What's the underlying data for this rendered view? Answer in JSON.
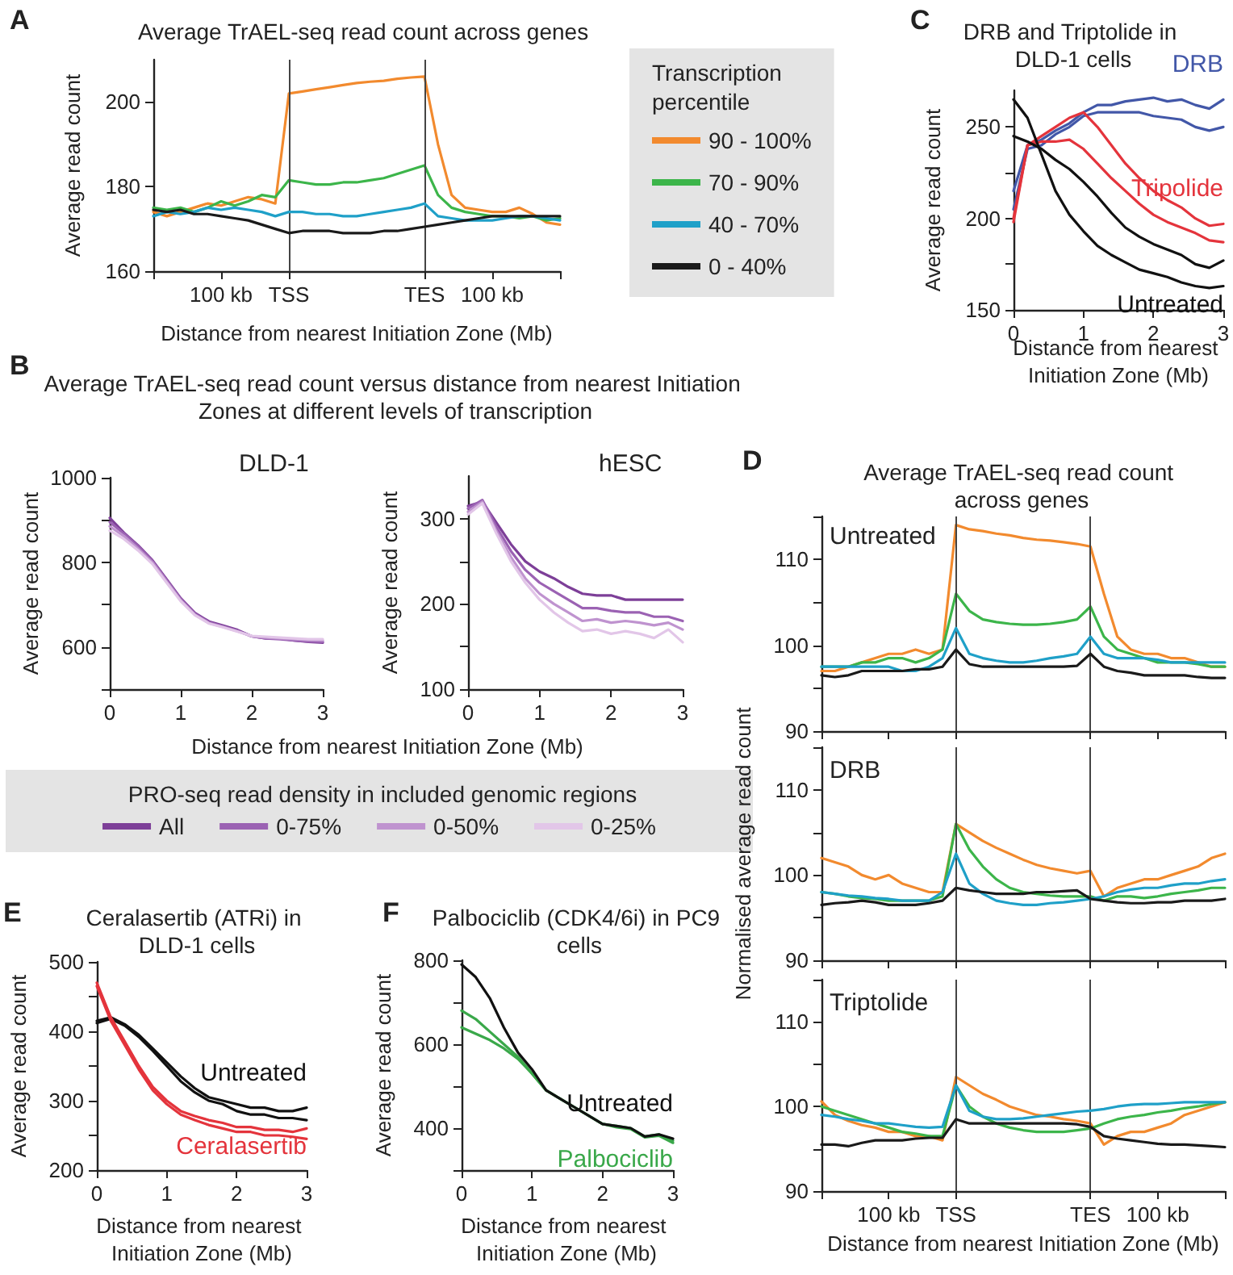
{
  "chart_data": [
    {
      "type": "line",
      "title": "Average TrAEL-seq read count across genes",
      "ylabel": "Average read count",
      "xlabel": "Distance from nearest Initiation Zone (Mb)",
      "legend_title": "Transcription percentile",
      "legend": "right",
      "marker": "none",
      "line_style": "solid",
      "annotations": [
        "A"
      ],
      "categories": [
        null,
        null,
        null,
        null,
        null,
        "100 kb",
        null,
        null,
        null,
        null,
        "TSS",
        null,
        null,
        null,
        null,
        null,
        null,
        null,
        null,
        null,
        "TES",
        null,
        null,
        null,
        null,
        "100 kb",
        null,
        null,
        null,
        null,
        null
      ],
      "ylim": [
        160,
        210
      ],
      "yticks": [
        160,
        180,
        200
      ],
      "ref_lines": [
        {
          "axis": "x",
          "value": "TSS"
        },
        {
          "axis": "x",
          "value": "TES"
        }
      ],
      "series": [
        {
          "name": "90 - 100%",
          "color": "#f28a2e",
          "values": [
            174,
            173,
            174,
            175,
            176,
            175.5,
            176.5,
            177.5,
            177,
            176,
            202,
            202.5,
            203,
            203.5,
            204,
            204.5,
            204.8,
            205,
            205.5,
            205.8,
            206,
            190,
            178,
            175,
            174.5,
            174,
            174,
            175,
            173.5,
            171.5,
            171
          ]
        },
        {
          "name": "70 - 90%",
          "color": "#3cb54a",
          "values": [
            175,
            174.5,
            175,
            174,
            175,
            176.5,
            175.5,
            176.5,
            178,
            177.5,
            181.5,
            181,
            180.5,
            180.5,
            181,
            181,
            181.5,
            182,
            183,
            184,
            185,
            178,
            175,
            174,
            173.5,
            173,
            173,
            172.5,
            173,
            172,
            172.5
          ]
        },
        {
          "name": "40 - 70%",
          "color": "#1fa0c8",
          "values": [
            173,
            174,
            173.5,
            174,
            175,
            174.5,
            175,
            174.5,
            174,
            173,
            174,
            174,
            173.5,
            173.5,
            173,
            173,
            173.5,
            174,
            174.5,
            175,
            176,
            173,
            172.5,
            172,
            172,
            172,
            172.5,
            173,
            173,
            172.5,
            172
          ]
        },
        {
          "name": "0 - 40%",
          "color": "#1a1a1a",
          "values": [
            174.5,
            174,
            174.5,
            173.5,
            173.5,
            173,
            172.5,
            172,
            171,
            170,
            169,
            169.5,
            169.5,
            169.5,
            169,
            169,
            169,
            169.5,
            169.5,
            170,
            170.5,
            171,
            171.5,
            172,
            172.5,
            173,
            173,
            173,
            173,
            173,
            173
          ]
        }
      ]
    },
    {
      "type": "line",
      "title": "Average TrAEL-seq read count versus distance from nearest Initiation Zones at different levels of transcription",
      "ylabel": "Average read count",
      "xlabel": "Distance from nearest Initiation Zone (Mb)",
      "legend_title": "PRO-seq read density in included genomic regions",
      "legend": "bottom",
      "marker": "none",
      "line_style": "solid",
      "annotations": [
        "B",
        "DLD-1"
      ],
      "x": [
        0,
        0.2,
        0.4,
        0.6,
        0.8,
        1,
        1.2,
        1.4,
        1.6,
        1.8,
        2,
        2.2,
        2.4,
        2.6,
        2.8,
        3
      ],
      "xlim": [
        0,
        3
      ],
      "xticks": [
        0,
        1,
        2,
        3
      ],
      "ylim": [
        500,
        1000
      ],
      "yticks": [
        {
          "value": 500,
          "label": null
        },
        600,
        {
          "value": 700,
          "label": null
        },
        800,
        {
          "value": 900,
          "label": null
        },
        1000
      ],
      "series": [
        {
          "name": "All",
          "color": "#7d3f98",
          "values": [
            905,
            870,
            840,
            805,
            760,
            715,
            680,
            660,
            650,
            640,
            625,
            620,
            620,
            615,
            612,
            610
          ]
        },
        {
          "name": "0-75%",
          "color": "#9b62b3",
          "values": [
            895,
            868,
            838,
            803,
            758,
            713,
            678,
            658,
            648,
            638,
            625,
            620,
            618,
            615,
            613,
            612
          ]
        },
        {
          "name": "0-50%",
          "color": "#bf93cf",
          "values": [
            885,
            862,
            832,
            800,
            755,
            710,
            676,
            656,
            647,
            637,
            625,
            622,
            620,
            618,
            616,
            615
          ]
        },
        {
          "name": "0-25%",
          "color": "#e2c6e8",
          "values": [
            875,
            855,
            828,
            796,
            752,
            708,
            675,
            655,
            646,
            636,
            626,
            624,
            622,
            620,
            618,
            618
          ]
        }
      ]
    },
    {
      "type": "line",
      "ylabel": "Average read count",
      "marker": "none",
      "line_style": "solid",
      "annotations": [
        "hESC"
      ],
      "x": [
        0,
        0.2,
        0.4,
        0.6,
        0.8,
        1,
        1.2,
        1.4,
        1.6,
        1.8,
        2,
        2.2,
        2.4,
        2.6,
        2.8,
        3
      ],
      "xlim": [
        0,
        3
      ],
      "xticks": [
        0,
        1,
        2,
        3
      ],
      "ylim": [
        100,
        350
      ],
      "yticks": [
        100,
        {
          "value": 150,
          "label": null
        },
        200,
        {
          "value": 250,
          "label": null
        },
        300
      ],
      "series": [
        {
          "color": "#7d3f98",
          "values": [
            315,
            320,
            295,
            270,
            250,
            238,
            230,
            220,
            212,
            210,
            210,
            205,
            205,
            205,
            205,
            205
          ]
        },
        {
          "color": "#9b62b3",
          "values": [
            312,
            322,
            290,
            262,
            240,
            225,
            215,
            205,
            195,
            195,
            192,
            190,
            190,
            185,
            185,
            180
          ]
        },
        {
          "color": "#bf93cf",
          "values": [
            308,
            320,
            285,
            255,
            230,
            212,
            200,
            190,
            180,
            182,
            178,
            180,
            178,
            175,
            178,
            170
          ]
        },
        {
          "color": "#e2c6e8",
          "values": [
            305,
            318,
            282,
            250,
            225,
            205,
            190,
            178,
            168,
            170,
            165,
            168,
            165,
            160,
            170,
            155
          ]
        }
      ]
    },
    {
      "type": "line",
      "title": "DRB and Triptolide in DLD-1 cells",
      "ylabel": "Average read count",
      "xlabel": "Distance from nearest Initiation Zone (Mb)",
      "marker": "none",
      "line_style": "solid",
      "annotations": [
        "C"
      ],
      "x": [
        0,
        0.2,
        0.4,
        0.6,
        0.8,
        1,
        1.2,
        1.4,
        1.6,
        1.8,
        2,
        2.2,
        2.4,
        2.6,
        2.8,
        3
      ],
      "xlim": [
        0,
        3
      ],
      "xticks": [
        0,
        1,
        2,
        3
      ],
      "ylim": [
        150,
        270
      ],
      "yticks": [
        150,
        {
          "value": 175,
          "label": null
        },
        200,
        {
          "value": 225,
          "label": null
        },
        250
      ],
      "series": [
        {
          "name": "DRB",
          "color": "#4257a8",
          "values": [
            215,
            240,
            243,
            248,
            252,
            258,
            262,
            262,
            264,
            265,
            266,
            264,
            265,
            262,
            260,
            265
          ]
        },
        {
          "color": "#4257a8",
          "values": [
            205,
            238,
            240,
            246,
            250,
            256,
            258,
            258,
            258,
            258,
            256,
            255,
            254,
            250,
            248,
            250
          ]
        },
        {
          "name": "Tripolide",
          "color": "#e4343c",
          "values": [
            200,
            240,
            245,
            250,
            255,
            258,
            250,
            240,
            230,
            222,
            215,
            210,
            206,
            200,
            196,
            197
          ]
        },
        {
          "color": "#e4343c",
          "values": [
            198,
            240,
            242,
            242,
            243,
            238,
            230,
            222,
            215,
            208,
            202,
            198,
            195,
            192,
            188,
            187
          ]
        },
        {
          "name": "Untreated",
          "color": "#111111",
          "values": [
            265,
            255,
            235,
            215,
            202,
            193,
            185,
            180,
            176,
            172,
            170,
            168,
            165,
            163,
            162,
            163
          ]
        },
        {
          "color": "#111111",
          "values": [
            245,
            242,
            238,
            232,
            227,
            220,
            212,
            203,
            195,
            190,
            186,
            183,
            180,
            175,
            173,
            177
          ]
        }
      ]
    },
    {
      "type": "line",
      "title": "Average TrAEL-seq read count across genes",
      "tick_labels": "y",
      "marker": "none",
      "line_style": "solid",
      "annotations": [
        "D",
        "Untreated"
      ],
      "categories": [
        null,
        null,
        null,
        null,
        null,
        "100 kb",
        null,
        null,
        null,
        null,
        "TSS",
        null,
        null,
        null,
        null,
        null,
        null,
        null,
        null,
        null,
        "TES",
        null,
        null,
        null,
        null,
        "100 kb",
        null,
        null,
        null,
        null,
        null
      ],
      "ylim": [
        90,
        115
      ],
      "yticks": [
        90,
        {
          "value": 95,
          "label": null
        },
        100,
        {
          "value": 105,
          "label": null
        },
        110,
        {
          "value": 115,
          "label": null
        }
      ],
      "ref_lines": [
        {
          "axis": "x",
          "value": "TSS"
        },
        {
          "axis": "x",
          "value": "TES"
        }
      ],
      "series": [
        {
          "color": "#f28a2e",
          "values": [
            97,
            97,
            97.5,
            98,
            98.5,
            99,
            99,
            99.5,
            99,
            99.5,
            114,
            113.5,
            113.3,
            113,
            112.8,
            112.5,
            112.3,
            112.2,
            112,
            111.8,
            111.5,
            106,
            101,
            99.5,
            99,
            99,
            98.5,
            98.5,
            98,
            97.5,
            97.5
          ]
        },
        {
          "color": "#3cb54a",
          "values": [
            97.5,
            97.5,
            97.5,
            98,
            98,
            98.5,
            98.5,
            98,
            98.5,
            99.5,
            106,
            104,
            103,
            102.7,
            102.5,
            102.4,
            102.4,
            102.5,
            102.7,
            103,
            104.5,
            101,
            99.5,
            99,
            98.5,
            98,
            98,
            98,
            97.8,
            97.5,
            97.5
          ]
        },
        {
          "color": "#1fa0c8",
          "values": [
            97.5,
            97.5,
            97.5,
            97.5,
            97.5,
            97.5,
            97,
            97,
            97.5,
            98.5,
            102,
            99,
            98.5,
            98.2,
            98,
            98,
            98.2,
            98.5,
            98.7,
            99,
            101,
            99,
            98.5,
            98.5,
            98.5,
            98.3,
            98,
            98,
            98,
            98,
            98
          ]
        },
        {
          "color": "#1a1a1a",
          "values": [
            96.5,
            96.3,
            96.5,
            97,
            97,
            97,
            97,
            97.2,
            97.2,
            97.5,
            99.5,
            97.8,
            97.5,
            97.5,
            97.5,
            97.5,
            97.5,
            97.5,
            97.5,
            97.6,
            99,
            97.5,
            97,
            96.8,
            96.5,
            96.5,
            96.5,
            96.5,
            96.3,
            96.2,
            96.2
          ]
        }
      ]
    },
    {
      "type": "line",
      "ylabel": "Normalised average read count",
      "tick_labels": "y",
      "marker": "none",
      "line_style": "solid",
      "annotations": [
        "DRB"
      ],
      "categories": [
        null,
        null,
        null,
        null,
        null,
        "100 kb",
        null,
        null,
        null,
        null,
        "TSS",
        null,
        null,
        null,
        null,
        null,
        null,
        null,
        null,
        null,
        "TES",
        null,
        null,
        null,
        null,
        "100 kb",
        null,
        null,
        null,
        null,
        null
      ],
      "ylim": [
        90,
        115
      ],
      "yticks": [
        90,
        {
          "value": 95,
          "label": null
        },
        100,
        {
          "value": 105,
          "label": null
        },
        110,
        {
          "value": 115,
          "label": null
        }
      ],
      "ref_lines": [
        {
          "axis": "x",
          "value": "TSS"
        },
        {
          "axis": "x",
          "value": "TES"
        }
      ],
      "series": [
        {
          "color": "#f28a2e",
          "values": [
            102,
            101.5,
            101,
            100,
            99.5,
            100,
            99,
            98.5,
            98,
            98,
            106,
            105,
            104,
            103.2,
            102.5,
            101.8,
            101.2,
            100.8,
            100.5,
            100.2,
            100.5,
            97.5,
            98.5,
            99,
            99.5,
            99.5,
            100,
            100.5,
            101,
            102,
            102.5
          ]
        },
        {
          "color": "#3cb54a",
          "values": [
            98,
            97.8,
            97.5,
            97.3,
            97.2,
            97,
            97,
            97,
            97,
            97.5,
            106,
            103,
            101,
            99.5,
            98.5,
            98,
            97.8,
            97.6,
            97.5,
            97.5,
            97.5,
            97,
            97.5,
            97.5,
            97.3,
            97.5,
            97.8,
            98,
            98.2,
            98.5,
            98.5
          ]
        },
        {
          "color": "#1fa0c8",
          "values": [
            98,
            97.8,
            97.6,
            97.5,
            97.3,
            97.2,
            97,
            97,
            97,
            98,
            102.5,
            99,
            97.8,
            97,
            96.7,
            96.5,
            96.5,
            96.7,
            96.8,
            97,
            97.2,
            97.5,
            98,
            98.3,
            98.5,
            98.5,
            98.8,
            99,
            99,
            99.3,
            99.5
          ]
        },
        {
          "color": "#1a1a1a",
          "values": [
            96.5,
            96.7,
            96.8,
            97,
            96.8,
            96.5,
            96.5,
            96.5,
            96.7,
            97,
            98.5,
            98.2,
            98,
            97.8,
            97.8,
            97.8,
            98,
            98,
            98.1,
            98.2,
            97.2,
            97,
            96.8,
            96.7,
            96.7,
            96.8,
            96.8,
            97,
            97,
            97,
            97.2
          ]
        }
      ]
    },
    {
      "type": "line",
      "xlabel": "Distance from nearest Initiation Zone (Mb)",
      "marker": "none",
      "line_style": "solid",
      "annotations": [
        "Triptolide"
      ],
      "categories": [
        null,
        null,
        null,
        null,
        null,
        "100 kb",
        null,
        null,
        null,
        null,
        "TSS",
        null,
        null,
        null,
        null,
        null,
        null,
        null,
        null,
        null,
        "TES",
        null,
        null,
        null,
        null,
        "100 kb",
        null,
        null,
        null,
        null,
        null
      ],
      "ylim": [
        90,
        115
      ],
      "yticks": [
        90,
        {
          "value": 95,
          "label": null
        },
        100,
        {
          "value": 105,
          "label": null
        },
        110,
        {
          "value": 115,
          "label": null
        }
      ],
      "ref_lines": [
        {
          "axis": "x",
          "value": "TSS"
        },
        {
          "axis": "x",
          "value": "TES"
        }
      ],
      "series": [
        {
          "color": "#f28a2e",
          "values": [
            100.6,
            99,
            98.3,
            97.8,
            97.5,
            97,
            97,
            96.5,
            96.5,
            96,
            103.5,
            102.5,
            101.5,
            100.8,
            100,
            99.5,
            99,
            98.8,
            98.5,
            98.3,
            98,
            95.5,
            96.5,
            97,
            97,
            97.5,
            98,
            99,
            99.5,
            100,
            100.5
          ]
        },
        {
          "color": "#3cb54a",
          "values": [
            100,
            99.5,
            99,
            98.5,
            98,
            97.5,
            97,
            96.8,
            96.5,
            96.5,
            102.5,
            100,
            98.8,
            98,
            97.5,
            97.2,
            97,
            97,
            97,
            97.2,
            97.4,
            98,
            98.5,
            98.8,
            99,
            99.3,
            99.5,
            99.8,
            100,
            100.3,
            100.5
          ]
        },
        {
          "color": "#1fa0c8",
          "values": [
            99,
            98.8,
            98.5,
            98.3,
            98,
            98,
            97.8,
            97.6,
            97.5,
            97.6,
            102.5,
            99.5,
            98.8,
            98.5,
            98.5,
            98.6,
            98.8,
            99,
            99.2,
            99.4,
            99.5,
            99.7,
            100,
            100.2,
            100.3,
            100.3,
            100.4,
            100.5,
            100.5,
            100.5,
            100.5
          ]
        },
        {
          "color": "#1a1a1a",
          "values": [
            95.5,
            95.5,
            95.3,
            95.7,
            96,
            96,
            96,
            96.2,
            96.3,
            96.3,
            98.5,
            98,
            98,
            98,
            98,
            98,
            98,
            98,
            98,
            97.9,
            97.6,
            96.5,
            96.2,
            96,
            95.8,
            95.6,
            95.5,
            95.5,
            95.4,
            95.3,
            95.2
          ]
        }
      ]
    },
    {
      "type": "line",
      "title": "Ceralasertib (ATRi) in DLD-1 cells",
      "ylabel": "Average read count",
      "xlabel": "Distance from nearest Initiation Zone (Mb)",
      "marker": "none",
      "line_style": "solid",
      "annotations": [
        "E"
      ],
      "x": [
        0,
        0.2,
        0.4,
        0.6,
        0.8,
        1,
        1.2,
        1.4,
        1.6,
        1.8,
        2,
        2.2,
        2.4,
        2.6,
        2.8,
        3
      ],
      "xlim": [
        0,
        3
      ],
      "xticks": [
        0,
        1,
        2,
        3
      ],
      "ylim": [
        200,
        500
      ],
      "yticks": [
        200,
        {
          "value": 250,
          "label": null
        },
        300,
        {
          "value": 350,
          "label": null
        },
        400,
        {
          "value": 450,
          "label": null
        },
        500
      ],
      "series": [
        {
          "name": "Untreated",
          "color": "#111111",
          "values": [
            415,
            420,
            410,
            395,
            375,
            355,
            335,
            318,
            305,
            300,
            295,
            290,
            290,
            285,
            285,
            290
          ]
        },
        {
          "color": "#111111",
          "values": [
            412,
            418,
            408,
            392,
            372,
            350,
            328,
            312,
            300,
            295,
            285,
            280,
            280,
            275,
            275,
            272
          ]
        },
        {
          "name": "Ceralasertib",
          "color": "#e4343c",
          "values": [
            470,
            420,
            385,
            350,
            320,
            300,
            285,
            278,
            272,
            268,
            262,
            262,
            258,
            258,
            255,
            260
          ]
        },
        {
          "color": "#e4343c",
          "values": [
            465,
            415,
            380,
            345,
            315,
            295,
            280,
            272,
            265,
            260,
            255,
            255,
            250,
            250,
            248,
            245
          ]
        }
      ]
    },
    {
      "type": "line",
      "title": "Palbociclib (CDK4/6i) in PC9 cells",
      "ylabel": "Average read count",
      "xlabel": "Distance from nearest Initiation Zone (Mb)",
      "marker": "none",
      "line_style": "solid",
      "annotations": [
        "F"
      ],
      "x": [
        0,
        0.2,
        0.4,
        0.6,
        0.8,
        1,
        1.2,
        1.4,
        1.6,
        1.8,
        2,
        2.2,
        2.4,
        2.6,
        2.8,
        3
      ],
      "xlim": [
        0,
        3
      ],
      "xticks": [
        0,
        1,
        2,
        3
      ],
      "ylim": [
        300,
        800
      ],
      "yticks": [
        {
          "value": 300,
          "label": null
        },
        400,
        {
          "value": 500,
          "label": null
        },
        600,
        {
          "value": 700,
          "label": null
        },
        800
      ],
      "series": [
        {
          "name": "Palbociclib",
          "color": "#3aa84a",
          "values": [
            680,
            660,
            630,
            600,
            570,
            530,
            490,
            470,
            450,
            430,
            410,
            405,
            400,
            380,
            385,
            370
          ]
        },
        {
          "color": "#3aa84a",
          "values": [
            640,
            625,
            610,
            590,
            565,
            530,
            490,
            470,
            450,
            430,
            410,
            402,
            398,
            378,
            382,
            365
          ]
        },
        {
          "name": "Untreated",
          "color": "#111111",
          "values": [
            790,
            760,
            710,
            640,
            580,
            540,
            490,
            470,
            450,
            430,
            410,
            405,
            400,
            380,
            385,
            375
          ]
        }
      ]
    }
  ]
}
